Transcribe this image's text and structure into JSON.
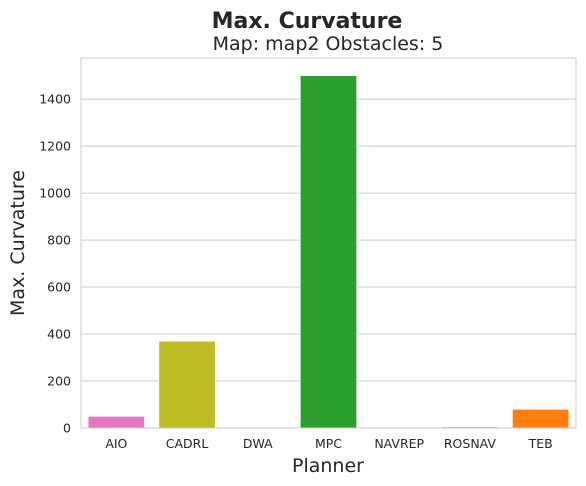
{
  "chart_data": {
    "type": "bar",
    "title": "Max. Curvature",
    "subtitle": "Map: map2 Obstacles: 5",
    "xlabel": "Planner",
    "ylabel": "Max. Curvature",
    "categories": [
      "AIO",
      "CADRL",
      "DWA",
      "MPC",
      "NAVREP",
      "ROSNAV",
      "TEB"
    ],
    "values": [
      50,
      370,
      0,
      1500,
      0,
      5,
      80
    ],
    "colors": [
      "#e377c2",
      "#bcbd22",
      "#7f7f7f",
      "#2ca02c",
      "#9467bd",
      "#17becf",
      "#ff7f0e"
    ],
    "ylim": [
      0,
      1575
    ],
    "yticks": [
      0,
      200,
      400,
      600,
      800,
      1000,
      1200,
      1400
    ],
    "grid": "horizontal"
  }
}
